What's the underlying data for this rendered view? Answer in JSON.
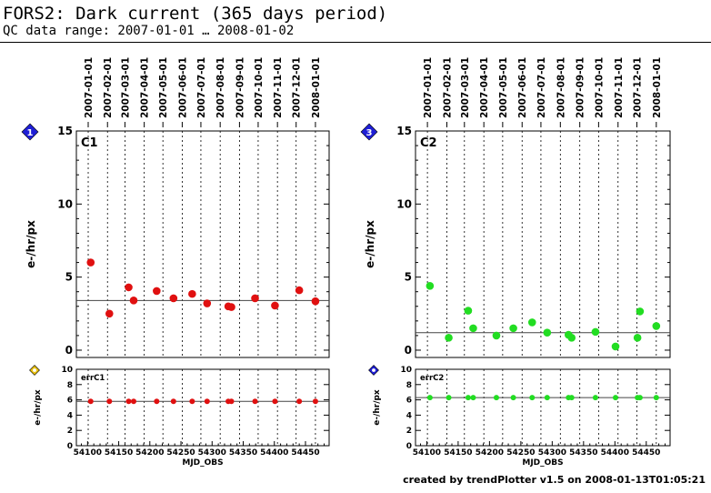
{
  "header": {
    "title": "FORS2: Dark current (365 days period)",
    "subtitle": "QC data range: 2007-01-01 … 2008-01-02"
  },
  "footer": {
    "text": "created by trendPlotter v1.5 on 2008-01-13T01:05:21"
  },
  "date_ticks": [
    {
      "label": "2007-01-01",
      "mjd": 54101
    },
    {
      "label": "2007-02-01",
      "mjd": 54132
    },
    {
      "label": "2007-03-01",
      "mjd": 54160
    },
    {
      "label": "2007-04-01",
      "mjd": 54191
    },
    {
      "label": "2007-05-01",
      "mjd": 54221
    },
    {
      "label": "2007-06-01",
      "mjd": 54252
    },
    {
      "label": "2007-07-01",
      "mjd": 54282
    },
    {
      "label": "2007-08-01",
      "mjd": 54313
    },
    {
      "label": "2007-09-01",
      "mjd": 54344
    },
    {
      "label": "2007-10-01",
      "mjd": 54374
    },
    {
      "label": "2007-11-01",
      "mjd": 54405
    },
    {
      "label": "2007-12-01",
      "mjd": 54435
    },
    {
      "label": "2008-01-01",
      "mjd": 54466
    }
  ],
  "chart_data": [
    {
      "type": "scatter",
      "panel_label": "C1",
      "marker": "1",
      "marker_color": "#1f1fd6",
      "ylabel": "e-/hr/px",
      "xlim": [
        54082,
        54488
      ],
      "ylim": [
        -0.5,
        15
      ],
      "yticks": [
        0,
        5,
        10,
        15
      ],
      "color": "#e01010",
      "reference_line": 3.4,
      "x": [
        54105,
        54135,
        54166,
        54174,
        54211,
        54238,
        54268,
        54292,
        54326,
        54331,
        54369,
        54401,
        54440,
        54466
      ],
      "y": [
        6.0,
        2.5,
        4.3,
        3.4,
        4.05,
        3.55,
        3.85,
        3.2,
        3.0,
        2.95,
        3.55,
        3.05,
        4.1,
        3.35
      ]
    },
    {
      "type": "scatter",
      "panel_label": "errC1",
      "marker_color": "#e8c010",
      "ylabel": "e-/hr/px",
      "xlabel": "MJD_OBS",
      "xlim": [
        54082,
        54488
      ],
      "ylim": [
        0,
        10
      ],
      "yticks": [
        0,
        2,
        4,
        6,
        8,
        10
      ],
      "xticks": [
        54100,
        54150,
        54200,
        54250,
        54300,
        54350,
        54400,
        54450
      ],
      "color": "#e01010",
      "reference_line": 5.8,
      "x": [
        54105,
        54135,
        54166,
        54174,
        54211,
        54238,
        54268,
        54292,
        54326,
        54331,
        54369,
        54401,
        54440,
        54466
      ],
      "y": [
        5.8,
        5.8,
        5.8,
        5.8,
        5.8,
        5.8,
        5.8,
        5.8,
        5.8,
        5.8,
        5.8,
        5.8,
        5.8,
        5.8
      ]
    },
    {
      "type": "scatter",
      "panel_label": "C2",
      "marker": "3",
      "marker_color": "#1f1fd6",
      "ylabel": "e-/hr/px",
      "xlim": [
        54082,
        54488
      ],
      "ylim": [
        -0.5,
        15
      ],
      "yticks": [
        0,
        5,
        10,
        15
      ],
      "color": "#22dd22",
      "reference_line": 1.2,
      "x": [
        54105,
        54135,
        54166,
        54174,
        54211,
        54238,
        54268,
        54292,
        54326,
        54331,
        54369,
        54401,
        54436,
        54440,
        54466
      ],
      "y": [
        4.4,
        0.85,
        2.7,
        1.5,
        1.0,
        1.5,
        1.9,
        1.2,
        1.05,
        0.85,
        1.25,
        0.25,
        0.85,
        2.65,
        1.65
      ]
    },
    {
      "type": "scatter",
      "panel_label": "errC2",
      "marker_color": "#1f1fd6",
      "ylabel": "e-/hr/px",
      "xlabel": "MJD_OBS",
      "xlim": [
        54082,
        54488
      ],
      "ylim": [
        0,
        10
      ],
      "yticks": [
        0,
        2,
        4,
        6,
        8,
        10
      ],
      "xticks": [
        54100,
        54150,
        54200,
        54250,
        54300,
        54350,
        54400,
        54450
      ],
      "color": "#22dd22",
      "reference_line": 6.3,
      "x": [
        54105,
        54135,
        54166,
        54174,
        54211,
        54238,
        54268,
        54292,
        54326,
        54331,
        54369,
        54401,
        54436,
        54440,
        54466
      ],
      "y": [
        6.3,
        6.3,
        6.3,
        6.3,
        6.3,
        6.3,
        6.3,
        6.3,
        6.3,
        6.3,
        6.3,
        6.3,
        6.3,
        6.3,
        6.3
      ]
    }
  ]
}
